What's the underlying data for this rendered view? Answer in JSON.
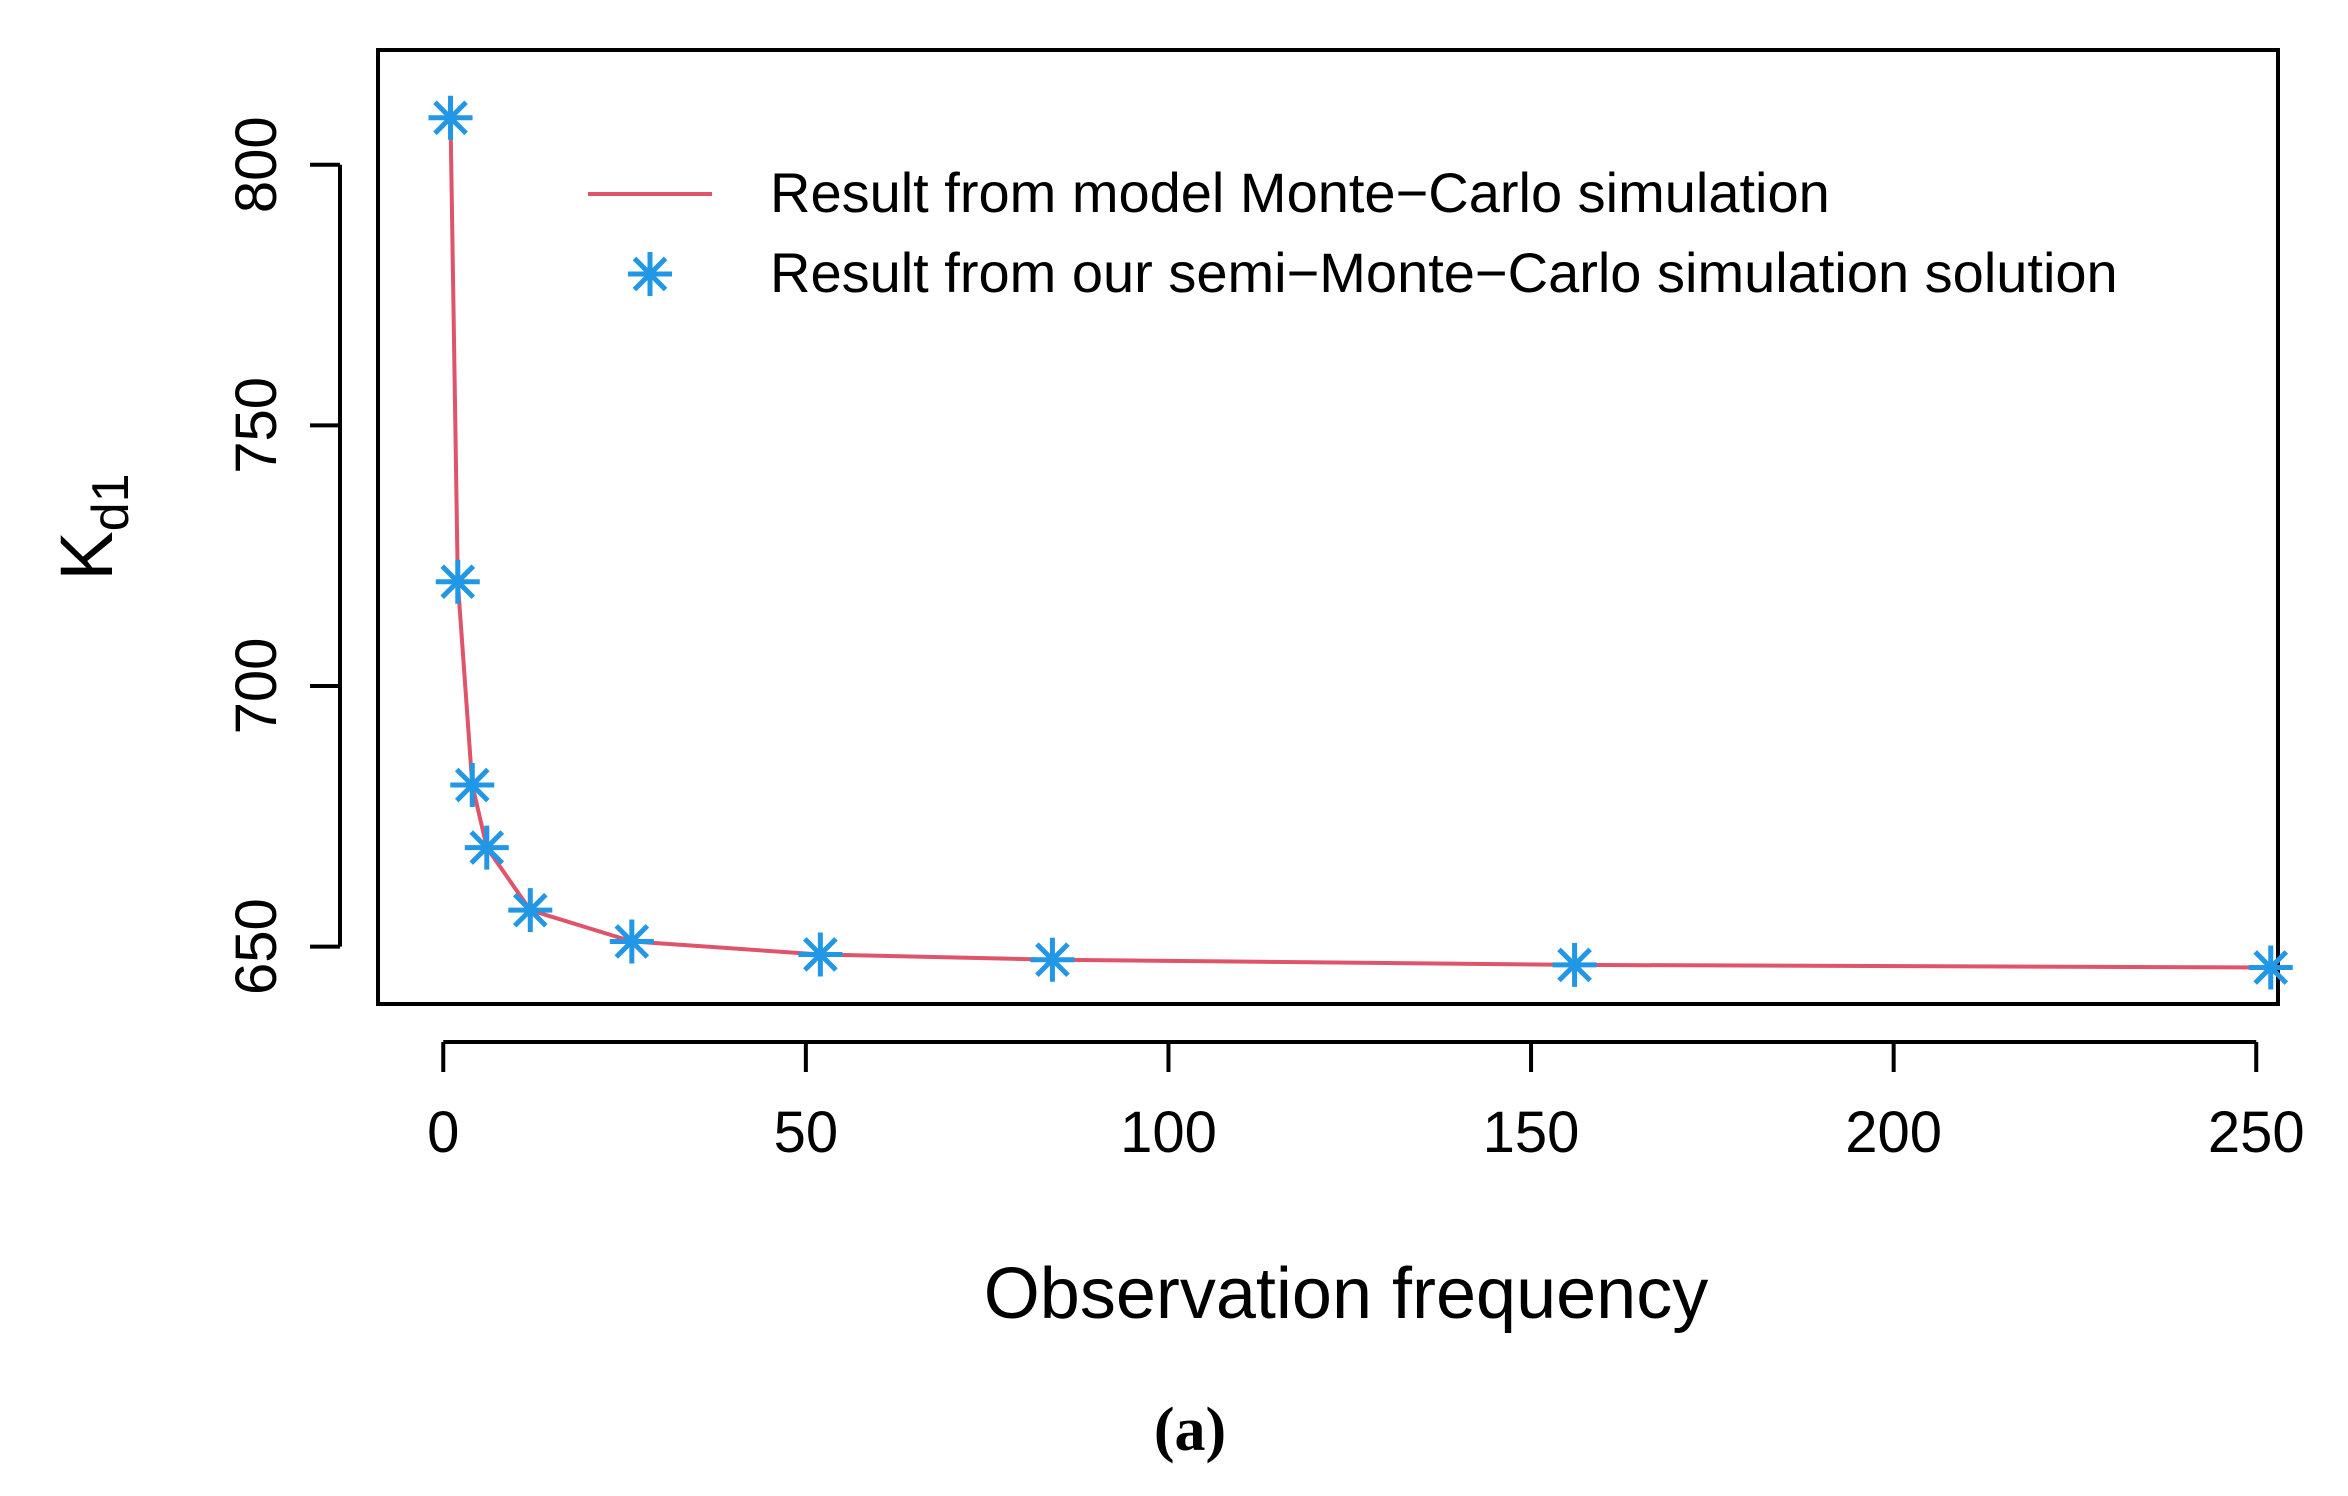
{
  "chart_data": {
    "type": "line",
    "title": "",
    "xlabel": "Observation frequency",
    "ylabel_main": "K",
    "ylabel_sub": "d1",
    "caption": "(a)",
    "xlim": [
      -9,
      253
    ],
    "ylim": [
      639,
      822
    ],
    "xticks": [
      0,
      50,
      100,
      150,
      200,
      250
    ],
    "yticks": [
      650,
      700,
      750,
      800
    ],
    "grid": false,
    "legend_position": "top-right",
    "colors": {
      "line": "#df536b",
      "points": "#2297e6",
      "axis": "#000000"
    },
    "series": [
      {
        "name": "Result from model Monte−Carlo simulation",
        "kind": "line",
        "x": [
          1,
          2,
          4,
          6,
          12,
          26,
          52,
          84,
          156,
          252
        ],
        "y": [
          809,
          720,
          681,
          669,
          657,
          651,
          648.5,
          647.5,
          646.5,
          646
        ]
      },
      {
        "name": "Result from our semi−Monte−Carlo simulation solution",
        "kind": "points",
        "marker": "asterisk",
        "x": [
          1,
          2,
          4,
          6,
          12,
          26,
          52,
          84,
          156,
          252
        ],
        "y": [
          809,
          720,
          681,
          669,
          657,
          651,
          648.5,
          647.5,
          646.5,
          646
        ]
      }
    ]
  }
}
